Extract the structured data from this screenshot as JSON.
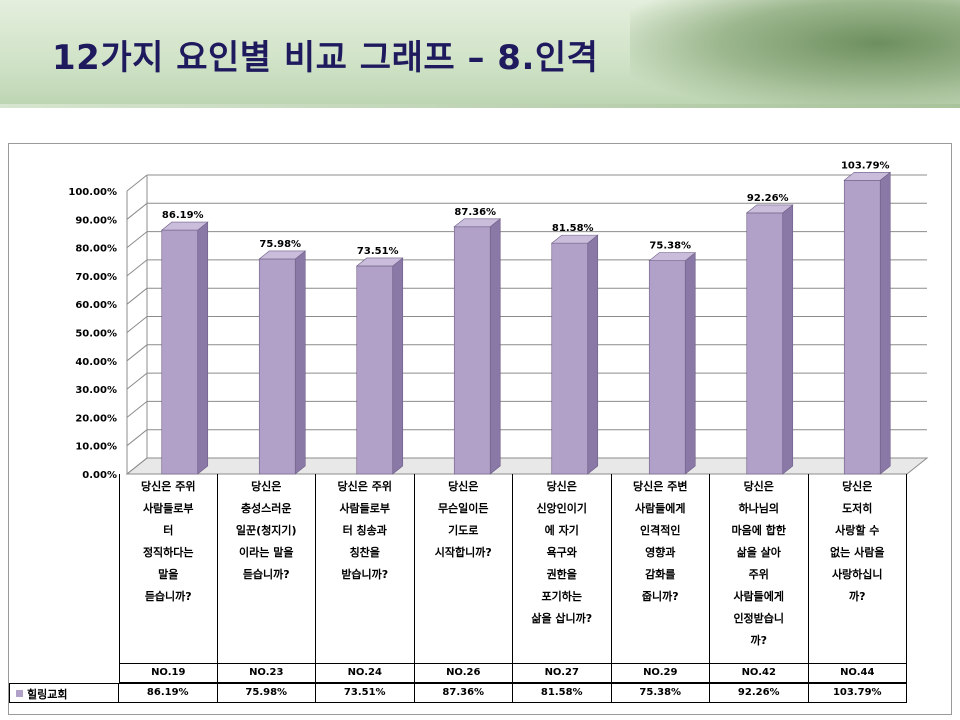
{
  "header": {
    "title": "12가지 요인별 비교 그래프 – 8.인격"
  },
  "chart_data": {
    "type": "bar",
    "ylim": [
      0,
      100
    ],
    "yticks": [
      "0.00%",
      "10.00%",
      "20.00%",
      "30.00%",
      "40.00%",
      "50.00%",
      "60.00%",
      "70.00%",
      "80.00%",
      "90.00%",
      "100.00%"
    ],
    "grid": true,
    "bar_color": "#b1a0c7",
    "categories": [
      "당신은 주위\n사람들로부\n터\n정직하다는\n말을\n듣습니까?",
      "당신은\n충성스러운\n일꾼(청지기)\n이라는 말을\n듣습니까?",
      "당신은 주위\n사람들로부\n터 칭송과\n칭찬을\n받습니까?",
      "당신은\n무슨일이든\n기도로\n시작합니까?",
      "당신은\n신앙인이기\n에 자기\n욕구와\n권한을\n포기하는\n삶을 삽니까?",
      "당신은 주변\n사람들에게\n인격적인\n영향과\n감화를\n줍니까?",
      "당신은\n하나님의\n마음에 합한\n삶을 살아\n주위\n사람들에게\n인정받습니\n까?",
      "당신은\n도저히\n사랑할 수\n없는 사람을\n사랑하십니\n까?"
    ],
    "numbers": [
      "NO.19",
      "NO.23",
      "NO.24",
      "NO.26",
      "NO.27",
      "NO.29",
      "NO.42",
      "NO.44"
    ],
    "series": [
      {
        "name": "힐링교회",
        "values": [
          86.19,
          75.98,
          73.51,
          87.36,
          81.58,
          75.38,
          92.26,
          103.79
        ],
        "labels": [
          "86.19%",
          "75.98%",
          "73.51%",
          "87.36%",
          "81.58%",
          "75.38%",
          "92.26%",
          "103.79%"
        ]
      }
    ]
  }
}
